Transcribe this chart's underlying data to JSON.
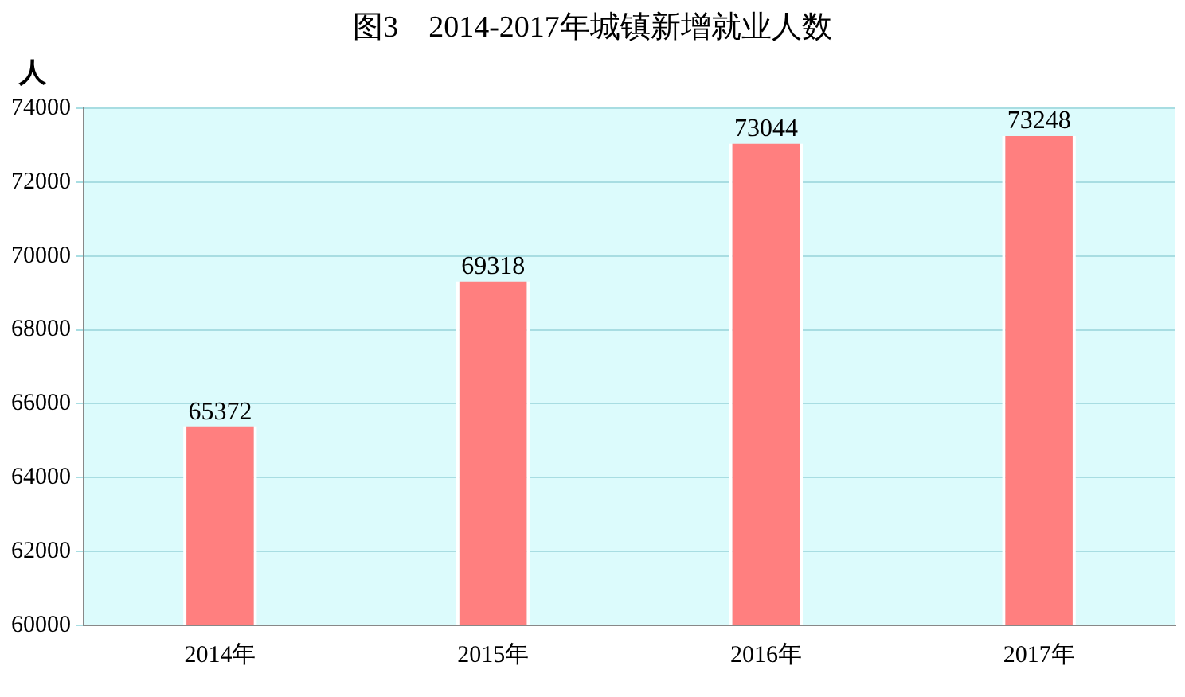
{
  "chart_data": {
    "type": "bar",
    "title": "图3　2014-2017年城镇新增就业人数",
    "ylabel": "人",
    "categories": [
      "2014年",
      "2015年",
      "2016年",
      "2017年"
    ],
    "values": [
      65372,
      69318,
      73044,
      73248
    ],
    "color": "#ff7f7f",
    "ylim": [
      60000,
      74000
    ],
    "yticks": [
      60000,
      62000,
      64000,
      66000,
      68000,
      70000,
      72000,
      74000
    ],
    "grid": "y",
    "data_labels": true
  }
}
